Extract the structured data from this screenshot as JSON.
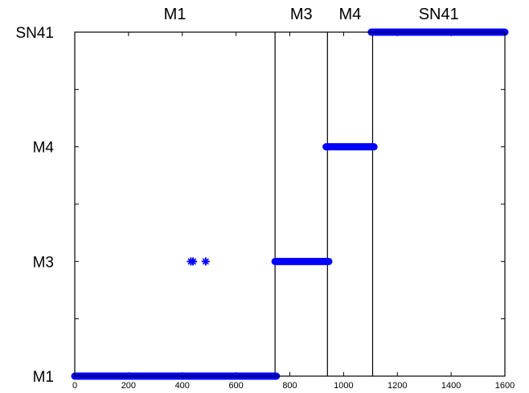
{
  "chart_data": {
    "type": "scatter",
    "xlim": [
      0,
      1600
    ],
    "x_ticks": [
      0,
      200,
      400,
      600,
      800,
      1000,
      1200,
      1400,
      1600
    ],
    "y_categories": [
      "M1",
      "M3",
      "M4",
      "SN41"
    ],
    "grid": false,
    "marker_color": "#0000ff",
    "boundaries": [
      745,
      940,
      1108
    ],
    "segments": [
      {
        "label": "M1",
        "x_start": 0,
        "x_end": 745
      },
      {
        "label": "M3",
        "x_start": 745,
        "x_end": 940
      },
      {
        "label": "M4",
        "x_start": 940,
        "x_end": 1108
      },
      {
        "label": "SN41",
        "x_start": 1108,
        "x_end": 1600
      }
    ],
    "series": [
      {
        "runs": [
          {
            "category": "M1",
            "x_start": 0,
            "x_end": 750
          },
          {
            "category": "M3",
            "x_start": 745,
            "x_end": 945
          },
          {
            "category": "M4",
            "x_start": 935,
            "x_end": 1113
          },
          {
            "category": "SN41",
            "x_start": 1103,
            "x_end": 1600
          }
        ],
        "points": [
          {
            "x": 432,
            "category": "M3"
          },
          {
            "x": 440,
            "category": "M3"
          },
          {
            "x": 487,
            "category": "M3"
          }
        ]
      }
    ]
  }
}
